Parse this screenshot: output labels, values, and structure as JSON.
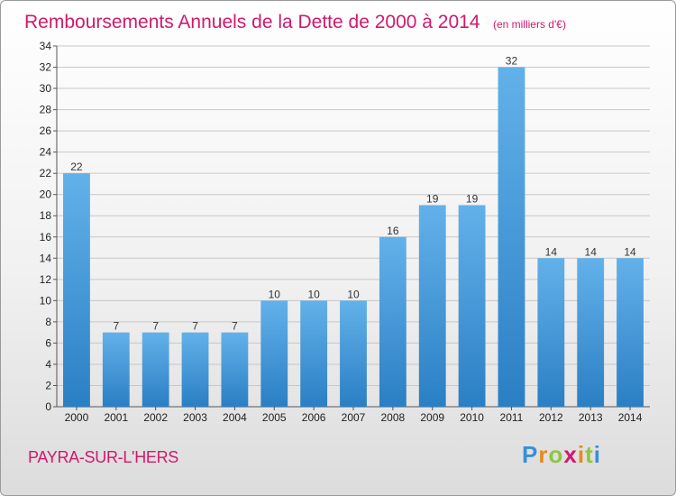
{
  "title": "Remboursements Annuels de la Dette de 2000 à 2014",
  "unit": "(en milliers d'€)",
  "town": "PAYRA-SUR-L'HERS",
  "logo": "Proxiti",
  "colors": {
    "bar_top": "#63b1ea",
    "bar_bottom": "#2a7fc4",
    "title": "#d0196e",
    "grid": "#c8c8c8"
  },
  "chart_data": {
    "type": "bar",
    "title": "Remboursements Annuels de la Dette de 2000 à 2014",
    "subtitle": "(en milliers d'€)",
    "categories": [
      "2000",
      "2001",
      "2002",
      "2003",
      "2004",
      "2005",
      "2006",
      "2007",
      "2008",
      "2009",
      "2010",
      "2011",
      "2012",
      "2013",
      "2014"
    ],
    "values": [
      22,
      7,
      7,
      7,
      7,
      10,
      10,
      10,
      16,
      19,
      19,
      32,
      14,
      14,
      14
    ],
    "ylim": [
      0,
      34
    ],
    "yticks": [
      0,
      2,
      4,
      6,
      8,
      10,
      12,
      14,
      16,
      18,
      20,
      22,
      24,
      26,
      28,
      30,
      32,
      34
    ],
    "grid": true,
    "xlabel": "",
    "ylabel": ""
  }
}
